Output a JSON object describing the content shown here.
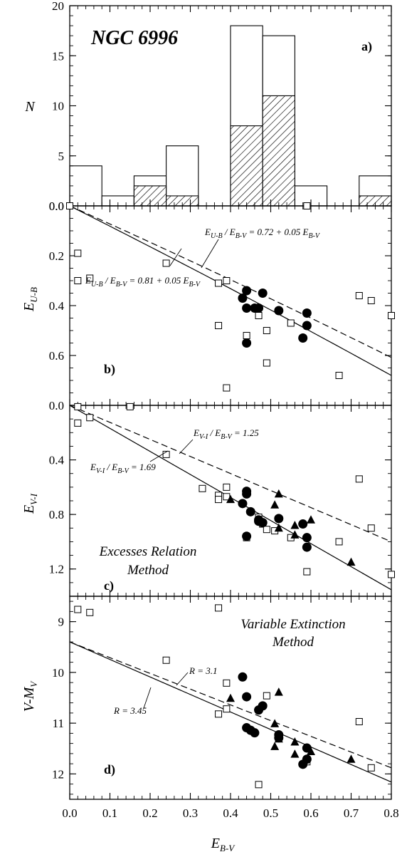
{
  "chart_data": [
    {
      "panel": "a)",
      "type": "bar",
      "title": "NGC 6996",
      "ylabel": "N",
      "ylim": [
        0,
        20
      ],
      "xlim": [
        0,
        0.8
      ],
      "yticks": [
        "0.0",
        "5",
        "10",
        "15",
        "20"
      ],
      "bin_edges": [
        0,
        0.08,
        0.16,
        0.24,
        0.32,
        0.4,
        0.48,
        0.56,
        0.64,
        0.72,
        0.8
      ],
      "series": [
        {
          "style": "open",
          "values": [
            4,
            1,
            3,
            6,
            0,
            18,
            17,
            2,
            0,
            3
          ]
        },
        {
          "style": "hatched",
          "values": [
            0,
            0,
            2,
            1,
            0,
            8,
            11,
            0,
            0,
            1
          ]
        }
      ]
    },
    {
      "panel": "b)",
      "type": "scatter",
      "ylabel": "E",
      "ylabel_sub": "U-B",
      "ylim": [
        0.0,
        0.8
      ],
      "y_inverted": true,
      "xlim": [
        0,
        0.8
      ],
      "yticks": [
        "0.0",
        "0.2",
        "0.4",
        "0.6"
      ],
      "series": [
        {
          "marker": "open-square",
          "points": [
            [
              0.0,
              0.0
            ],
            [
              0.59,
              0.0
            ],
            [
              0.02,
              0.19
            ],
            [
              0.02,
              0.3
            ],
            [
              0.05,
              0.29
            ],
            [
              0.24,
              0.23
            ],
            [
              0.37,
              0.31
            ],
            [
              0.39,
              0.3
            ],
            [
              0.37,
              0.48
            ],
            [
              0.44,
              0.52
            ],
            [
              0.47,
              0.44
            ],
            [
              0.49,
              0.5
            ],
            [
              0.49,
              0.63
            ],
            [
              0.55,
              0.47
            ],
            [
              0.39,
              0.73
            ],
            [
              0.67,
              0.68
            ],
            [
              0.72,
              0.36
            ],
            [
              0.75,
              0.38
            ],
            [
              0.8,
              0.44
            ]
          ]
        },
        {
          "marker": "filled-circle",
          "points": [
            [
              0.44,
              0.34
            ],
            [
              0.43,
              0.37
            ],
            [
              0.48,
              0.35
            ],
            [
              0.44,
              0.41
            ],
            [
              0.46,
              0.41
            ],
            [
              0.47,
              0.41
            ],
            [
              0.52,
              0.42
            ],
            [
              0.59,
              0.43
            ],
            [
              0.59,
              0.48
            ],
            [
              0.58,
              0.53
            ],
            [
              0.44,
              0.55
            ]
          ]
        }
      ],
      "lines": [
        {
          "label_main": "E",
          "label_sub1": "U-B",
          "label_mid": " / E",
          "label_sub2": "B-V",
          "label_rest": " = 0.72 + 0.05 E",
          "label_sub3": "B-V",
          "style": "dashed",
          "slope": 0.72,
          "quad": 0.05
        },
        {
          "label_main": "E",
          "label_sub1": "U-B",
          "label_mid": " / E",
          "label_sub2": "B-V",
          "label_rest": " = 0.81 + 0.05 E",
          "label_sub3": "B-V",
          "style": "solid",
          "slope": 0.81,
          "quad": 0.05
        }
      ]
    },
    {
      "panel": "c)",
      "type": "scatter",
      "ylabel": "E",
      "ylabel_sub": "V-I",
      "ylim": [
        0.0,
        1.4
      ],
      "y_inverted": true,
      "xlim": [
        0,
        0.8
      ],
      "yticks": [
        "0.0",
        "0.4",
        "0.8",
        "1.2"
      ],
      "annotation": [
        "Excesses Relation",
        "Method"
      ],
      "series": [
        {
          "marker": "open-square",
          "points": [
            [
              0.02,
              0.01
            ],
            [
              0.02,
              0.13
            ],
            [
              0.05,
              0.09
            ],
            [
              0.15,
              0.01
            ],
            [
              0.24,
              0.36
            ],
            [
              0.33,
              0.61
            ],
            [
              0.37,
              0.66
            ],
            [
              0.37,
              0.69
            ],
            [
              0.39,
              0.6
            ],
            [
              0.39,
              0.67
            ],
            [
              0.44,
              0.97
            ],
            [
              0.47,
              0.82
            ],
            [
              0.48,
              0.87
            ],
            [
              0.49,
              0.91
            ],
            [
              0.51,
              0.92
            ],
            [
              0.55,
              0.97
            ],
            [
              0.59,
              1.22
            ],
            [
              0.67,
              1.0
            ],
            [
              0.72,
              0.54
            ],
            [
              0.75,
              0.9
            ],
            [
              0.8,
              1.24
            ]
          ]
        },
        {
          "marker": "filled-circle",
          "points": [
            [
              0.44,
              0.63
            ],
            [
              0.44,
              0.65
            ],
            [
              0.43,
              0.72
            ],
            [
              0.45,
              0.78
            ],
            [
              0.47,
              0.84
            ],
            [
              0.47,
              0.85
            ],
            [
              0.48,
              0.86
            ],
            [
              0.52,
              0.83
            ],
            [
              0.58,
              0.87
            ],
            [
              0.59,
              0.97
            ],
            [
              0.59,
              1.04
            ],
            [
              0.44,
              0.96
            ]
          ]
        },
        {
          "marker": "filled-triangle",
          "points": [
            [
              0.4,
              0.69
            ],
            [
              0.52,
              0.65
            ],
            [
              0.51,
              0.73
            ],
            [
              0.52,
              0.9
            ],
            [
              0.56,
              0.88
            ],
            [
              0.56,
              0.95
            ],
            [
              0.6,
              0.84
            ],
            [
              0.7,
              1.15
            ]
          ]
        }
      ],
      "lines": [
        {
          "label_main": "E",
          "label_sub1": "V-I",
          "label_mid": " / E",
          "label_sub2": "B-V",
          "label_rest": " = 1.25",
          "style": "dashed",
          "slope": 1.25
        },
        {
          "label_main": "E",
          "label_sub1": "V-I",
          "label_mid": " / E",
          "label_sub2": "B-V",
          "label_rest": " = 1.69",
          "style": "solid",
          "slope": 1.69
        }
      ]
    },
    {
      "panel": "d)",
      "type": "scatter",
      "xlabel": "E",
      "xlabel_sub": "B-V",
      "ylabel": "V-M",
      "ylabel_sub": "V",
      "ylim": [
        8.5,
        12.5
      ],
      "y_inverted": true,
      "xlim": [
        0,
        0.8
      ],
      "xticks": [
        "0.0",
        "0.1",
        "0.2",
        "0.3",
        "0.4",
        "0.5",
        "0.6",
        "0.7",
        "0.8"
      ],
      "yticks": [
        "9",
        "10",
        "11",
        "12"
      ],
      "annotation": [
        "Variable Extinction",
        "Method"
      ],
      "series": [
        {
          "marker": "open-square",
          "points": [
            [
              0.02,
              8.76
            ],
            [
              0.05,
              8.82
            ],
            [
              0.24,
              9.76
            ],
            [
              0.37,
              8.73
            ],
            [
              0.37,
              10.82
            ],
            [
              0.39,
              10.21
            ],
            [
              0.39,
              10.72
            ],
            [
              0.49,
              10.46
            ],
            [
              0.47,
              12.21
            ],
            [
              0.59,
              11.76
            ],
            [
              0.72,
              10.97
            ],
            [
              0.75,
              11.88
            ]
          ]
        },
        {
          "marker": "filled-circle",
          "points": [
            [
              0.43,
              10.09
            ],
            [
              0.44,
              10.48
            ],
            [
              0.44,
              11.09
            ],
            [
              0.45,
              11.14
            ],
            [
              0.46,
              11.19
            ],
            [
              0.48,
              10.66
            ],
            [
              0.47,
              10.74
            ],
            [
              0.52,
              11.23
            ],
            [
              0.52,
              11.29
            ],
            [
              0.58,
              11.81
            ],
            [
              0.59,
              11.49
            ],
            [
              0.59,
              11.71
            ]
          ]
        },
        {
          "marker": "filled-triangle",
          "points": [
            [
              0.4,
              10.51
            ],
            [
              0.52,
              10.39
            ],
            [
              0.51,
              11.01
            ],
            [
              0.51,
              11.46
            ],
            [
              0.52,
              11.31
            ],
            [
              0.56,
              11.37
            ],
            [
              0.56,
              11.61
            ],
            [
              0.6,
              11.56
            ],
            [
              0.7,
              11.71
            ]
          ]
        }
      ],
      "lines": [
        {
          "label": "R = 3.1",
          "style": "dashed",
          "intercept": 9.4,
          "slope": 3.1
        },
        {
          "label": "R = 3.45",
          "style": "solid",
          "intercept": 9.4,
          "slope": 3.45
        }
      ]
    }
  ]
}
